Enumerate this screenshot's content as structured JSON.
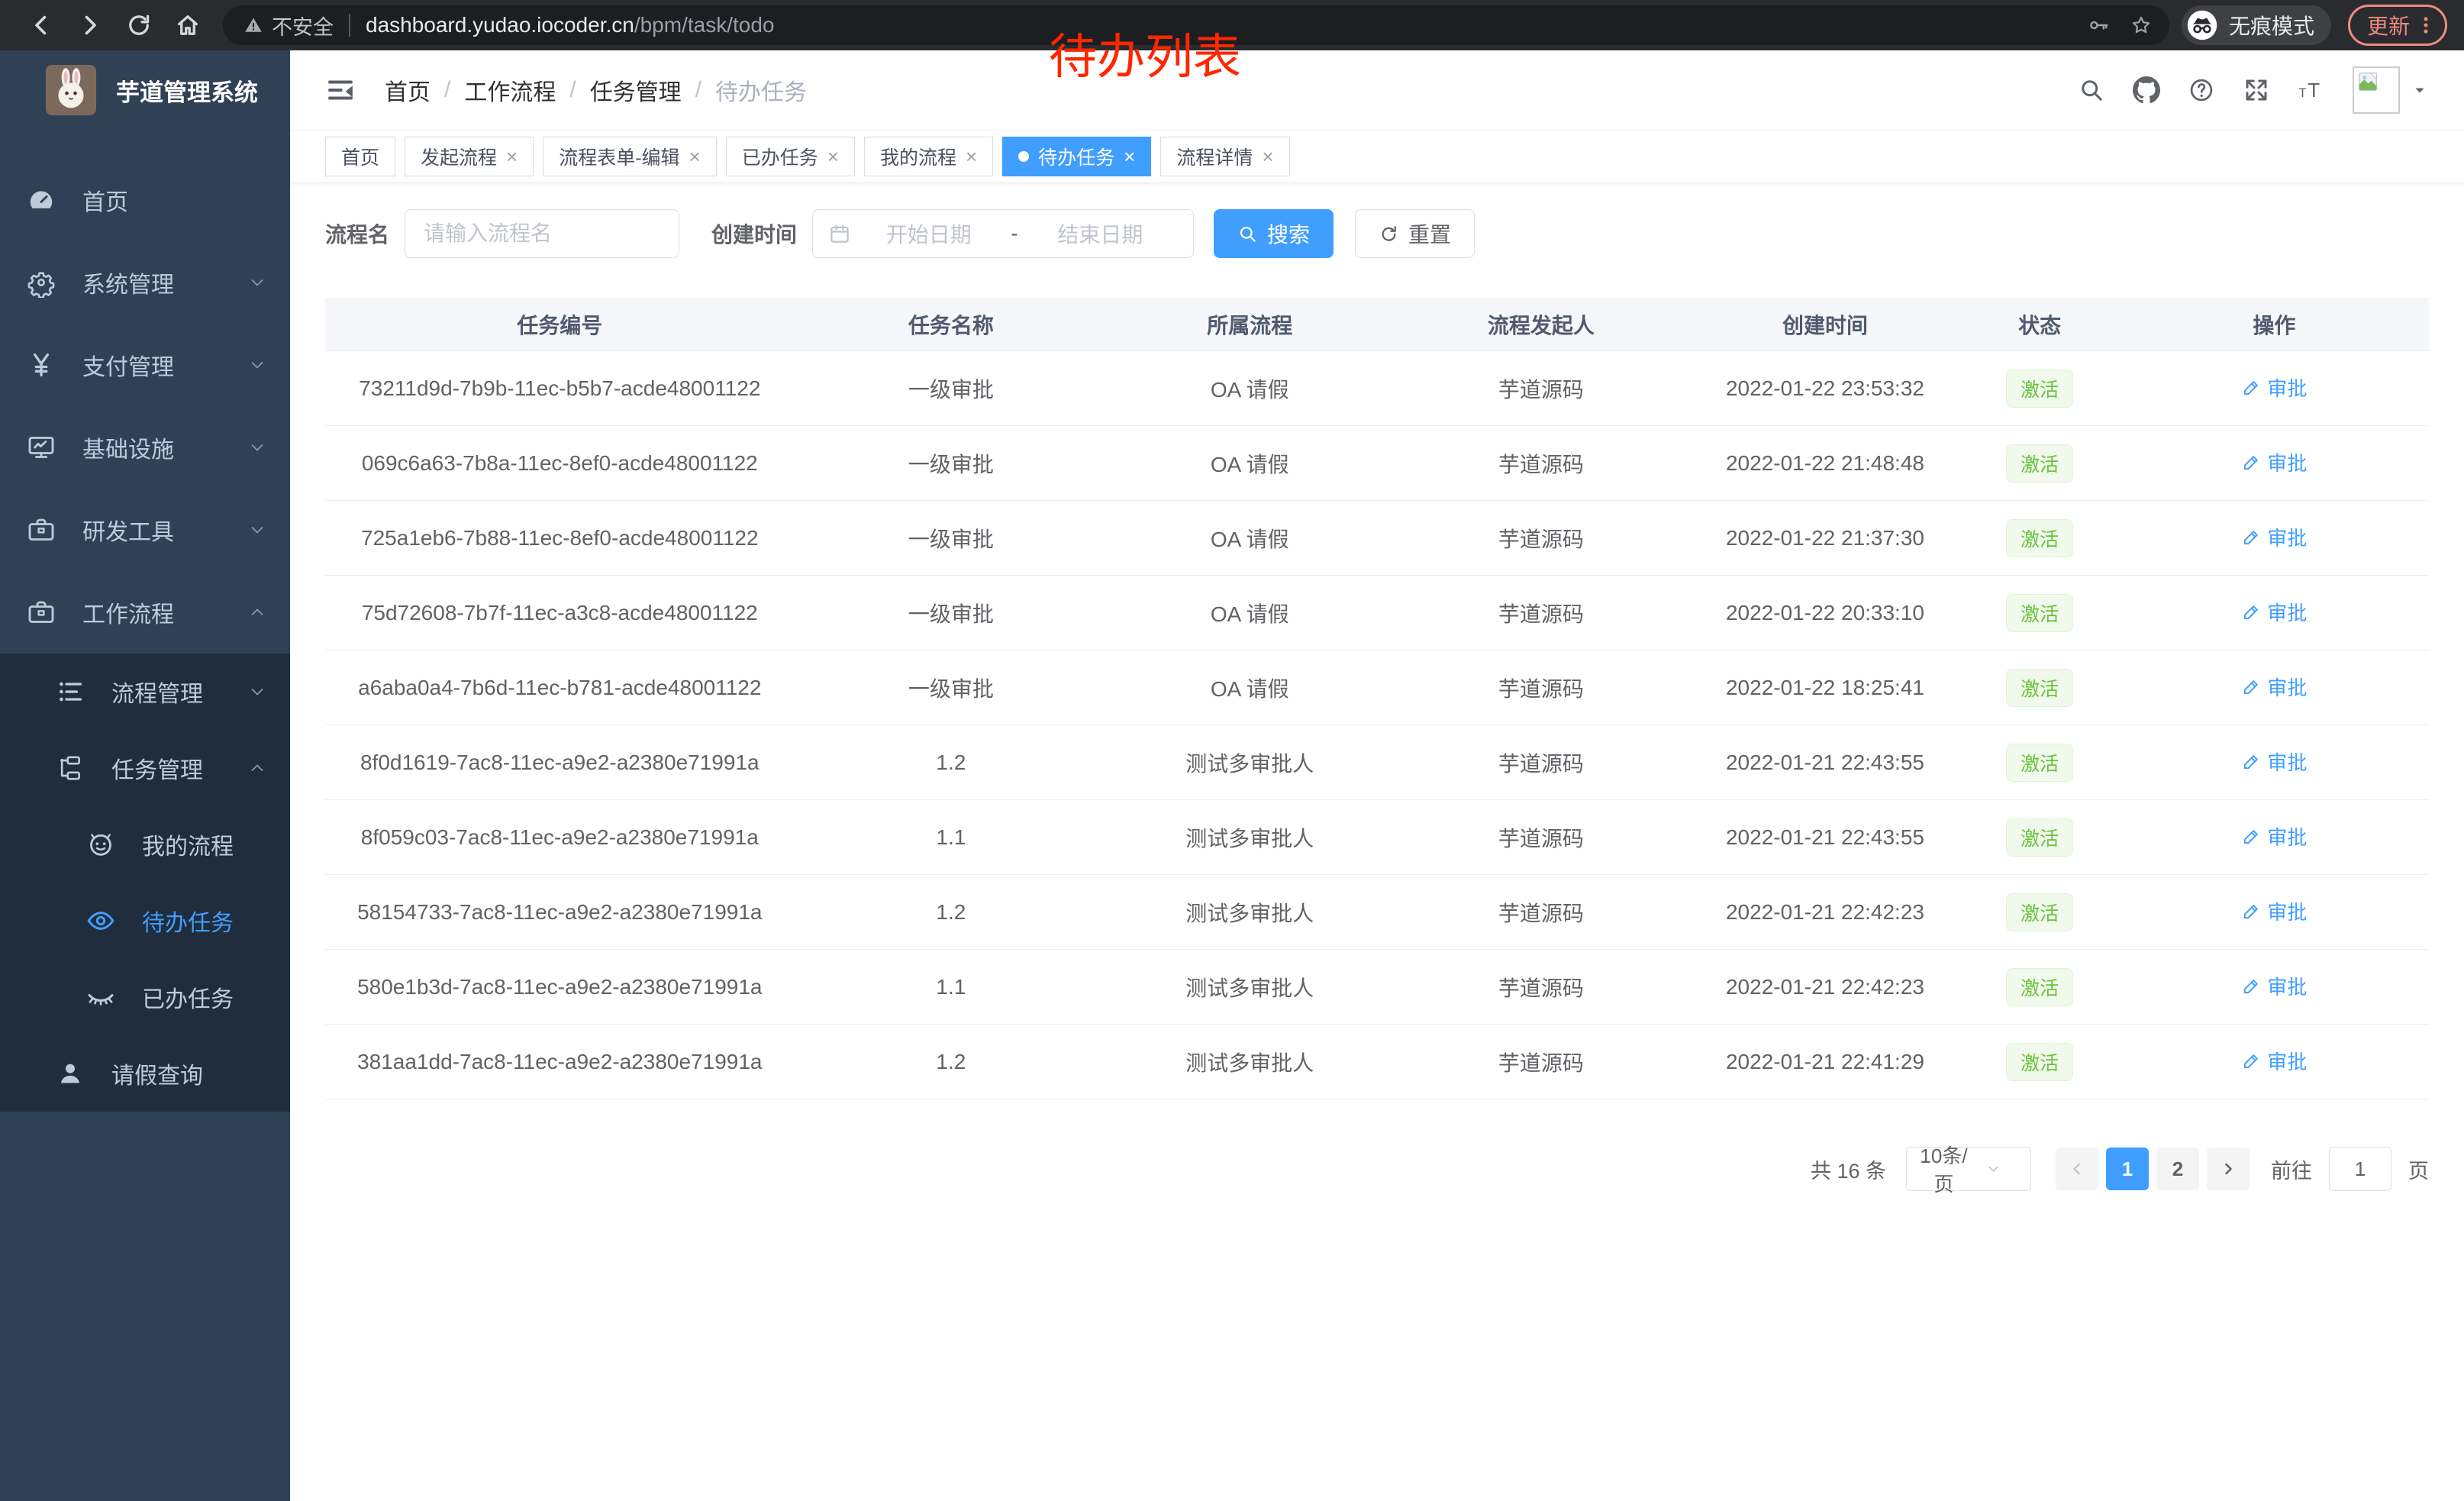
{
  "browser": {
    "security_label": "不安全",
    "url_host": "dashboard.yudao.iocoder.cn",
    "url_path": "/bpm/task/todo",
    "incognito_label": "无痕模式",
    "update_label": "更新"
  },
  "annotation": {
    "text": "待办列表",
    "color": "#ff2600"
  },
  "sidebar": {
    "app_title": "芋道管理系统",
    "items": [
      {
        "label": "首页",
        "icon": "gauge",
        "level": 0,
        "chevron": null,
        "sub": false,
        "active": false
      },
      {
        "label": "系统管理",
        "icon": "gear",
        "level": 0,
        "chevron": "down",
        "sub": false,
        "active": false
      },
      {
        "label": "支付管理",
        "icon": "yen",
        "level": 0,
        "chevron": "down",
        "sub": false,
        "active": false
      },
      {
        "label": "基础设施",
        "icon": "monitor",
        "level": 0,
        "chevron": "down",
        "sub": false,
        "active": false
      },
      {
        "label": "研发工具",
        "icon": "briefcase",
        "level": 0,
        "chevron": "down",
        "sub": false,
        "active": false
      },
      {
        "label": "工作流程",
        "icon": "briefcase",
        "level": 0,
        "chevron": "up",
        "sub": false,
        "active": false
      },
      {
        "label": "流程管理",
        "icon": "listtree",
        "level": 1,
        "chevron": "down",
        "sub": true,
        "active": false
      },
      {
        "label": "任务管理",
        "icon": "tree",
        "level": 1,
        "chevron": "up",
        "sub": true,
        "active": false
      },
      {
        "label": "我的流程",
        "icon": "robot",
        "level": 2,
        "chevron": null,
        "sub": true,
        "active": false
      },
      {
        "label": "待办任务",
        "icon": "eye",
        "level": 2,
        "chevron": null,
        "sub": true,
        "active": true
      },
      {
        "label": "已办任务",
        "icon": "eyeclosed",
        "level": 2,
        "chevron": null,
        "sub": true,
        "active": false
      },
      {
        "label": "请假查询",
        "icon": "user",
        "level": 1,
        "chevron": null,
        "sub": true,
        "active": false
      }
    ]
  },
  "header": {
    "breadcrumb": [
      "首页",
      "工作流程",
      "任务管理",
      "待办任务"
    ],
    "separator": "/"
  },
  "tabs": [
    {
      "label": "首页",
      "closable": false,
      "active": false
    },
    {
      "label": "发起流程",
      "closable": true,
      "active": false
    },
    {
      "label": "流程表单-编辑",
      "closable": true,
      "active": false
    },
    {
      "label": "已办任务",
      "closable": true,
      "active": false
    },
    {
      "label": "我的流程",
      "closable": true,
      "active": false
    },
    {
      "label": "待办任务",
      "closable": true,
      "active": true
    },
    {
      "label": "流程详情",
      "closable": true,
      "active": false
    }
  ],
  "filters": {
    "name_label": "流程名",
    "name_placeholder": "请输入流程名",
    "time_label": "创建时间",
    "start_placeholder": "开始日期",
    "range_separator": "-",
    "end_placeholder": "结束日期",
    "search_label": "搜索",
    "reset_label": "重置"
  },
  "table": {
    "columns": [
      "任务编号",
      "任务名称",
      "所属流程",
      "流程发起人",
      "创建时间",
      "状态",
      "操作"
    ],
    "rows": [
      {
        "id": "73211d9d-7b9b-11ec-b5b7-acde48001122",
        "name": "一级审批",
        "process": "OA 请假",
        "starter": "芋道源码",
        "time": "2022-01-22 23:53:32",
        "status": "激活",
        "action": "审批"
      },
      {
        "id": "069c6a63-7b8a-11ec-8ef0-acde48001122",
        "name": "一级审批",
        "process": "OA 请假",
        "starter": "芋道源码",
        "time": "2022-01-22 21:48:48",
        "status": "激活",
        "action": "审批"
      },
      {
        "id": "725a1eb6-7b88-11ec-8ef0-acde48001122",
        "name": "一级审批",
        "process": "OA 请假",
        "starter": "芋道源码",
        "time": "2022-01-22 21:37:30",
        "status": "激活",
        "action": "审批"
      },
      {
        "id": "75d72608-7b7f-11ec-a3c8-acde48001122",
        "name": "一级审批",
        "process": "OA 请假",
        "starter": "芋道源码",
        "time": "2022-01-22 20:33:10",
        "status": "激活",
        "action": "审批"
      },
      {
        "id": "a6aba0a4-7b6d-11ec-b781-acde48001122",
        "name": "一级审批",
        "process": "OA 请假",
        "starter": "芋道源码",
        "time": "2022-01-22 18:25:41",
        "status": "激活",
        "action": "审批"
      },
      {
        "id": "8f0d1619-7ac8-11ec-a9e2-a2380e71991a",
        "name": "1.2",
        "process": "测试多审批人",
        "starter": "芋道源码",
        "time": "2022-01-21 22:43:55",
        "status": "激活",
        "action": "审批"
      },
      {
        "id": "8f059c03-7ac8-11ec-a9e2-a2380e71991a",
        "name": "1.1",
        "process": "测试多审批人",
        "starter": "芋道源码",
        "time": "2022-01-21 22:43:55",
        "status": "激活",
        "action": "审批"
      },
      {
        "id": "58154733-7ac8-11ec-a9e2-a2380e71991a",
        "name": "1.2",
        "process": "测试多审批人",
        "starter": "芋道源码",
        "time": "2022-01-21 22:42:23",
        "status": "激活",
        "action": "审批"
      },
      {
        "id": "580e1b3d-7ac8-11ec-a9e2-a2380e71991a",
        "name": "1.1",
        "process": "测试多审批人",
        "starter": "芋道源码",
        "time": "2022-01-21 22:42:23",
        "status": "激活",
        "action": "审批"
      },
      {
        "id": "381aa1dd-7ac8-11ec-a9e2-a2380e71991a",
        "name": "1.2",
        "process": "测试多审批人",
        "starter": "芋道源码",
        "time": "2022-01-21 22:41:29",
        "status": "激活",
        "action": "审批"
      }
    ]
  },
  "pagination": {
    "total_label": "共 16 条",
    "page_size": "10条/页",
    "pages": [
      "1",
      "2"
    ],
    "active_page": "1",
    "goto_label": "前往",
    "goto_value": "1",
    "page_unit": "页"
  },
  "colors": {
    "accent": "#409eff",
    "sidebar_bg": "#304156",
    "submenu_bg": "#1f2d3d",
    "status_green": "#67c23a"
  }
}
